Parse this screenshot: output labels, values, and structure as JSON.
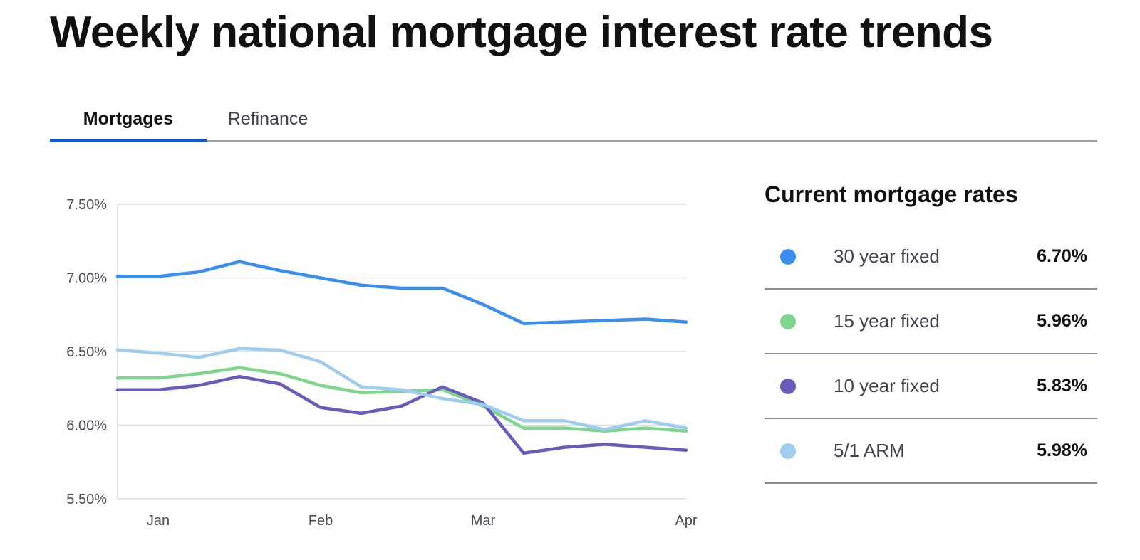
{
  "page": {
    "title": "Weekly national mortgage interest rate trends"
  },
  "tabs": [
    {
      "label": "Mortgages",
      "active": true
    },
    {
      "label": "Refinance",
      "active": false
    }
  ],
  "colors": {
    "accent": "#0a5bd8",
    "grid": "#dadce0",
    "axis_text": "#4a4d55"
  },
  "chart_data": {
    "type": "line",
    "title": "",
    "xlabel": "",
    "ylabel": "",
    "ylim": [
      5.5,
      7.5
    ],
    "y_ticks": [
      "7.50%",
      "7.00%",
      "6.50%",
      "6.00%",
      "5.50%"
    ],
    "y_tick_values": [
      7.5,
      7.0,
      6.5,
      6.0,
      5.5
    ],
    "x_tick_labels": [
      "Jan",
      "Feb",
      "Mar",
      "Apr"
    ],
    "x_tick_positions": [
      1,
      5,
      9,
      14
    ],
    "x": [
      0,
      1,
      2,
      3,
      4,
      5,
      6,
      7,
      8,
      9,
      10,
      11,
      12,
      13,
      14
    ],
    "grid": true,
    "series": [
      {
        "name": "30 year fixed",
        "color": "#3a8ef0",
        "values": [
          7.01,
          7.01,
          7.04,
          7.11,
          7.05,
          7.0,
          6.95,
          6.93,
          6.93,
          6.82,
          6.69,
          6.7,
          6.71,
          6.72,
          6.7
        ]
      },
      {
        "name": "15 year fixed",
        "color": "#7fd58d",
        "values": [
          6.32,
          6.32,
          6.35,
          6.39,
          6.35,
          6.27,
          6.22,
          6.23,
          6.24,
          6.13,
          5.98,
          5.98,
          5.96,
          5.98,
          5.96
        ]
      },
      {
        "name": "10 year fixed",
        "color": "#6b5bb8",
        "values": [
          6.24,
          6.24,
          6.27,
          6.33,
          6.28,
          6.12,
          6.08,
          6.13,
          6.26,
          6.15,
          5.81,
          5.85,
          5.87,
          5.85,
          5.83
        ]
      },
      {
        "name": "5/1 ARM",
        "color": "#9fcdf0",
        "values": [
          6.51,
          6.49,
          6.46,
          6.52,
          6.51,
          6.43,
          6.26,
          6.24,
          6.18,
          6.14,
          6.03,
          6.03,
          5.97,
          6.03,
          5.98
        ]
      }
    ]
  },
  "rates_panel": {
    "title": "Current mortgage rates",
    "rates": [
      {
        "label": "30 year fixed",
        "value": "6.70%",
        "color": "#3a8ef0"
      },
      {
        "label": "15 year fixed",
        "value": "5.96%",
        "color": "#7fd58d"
      },
      {
        "label": "10 year fixed",
        "value": "5.83%",
        "color": "#6b5bb8"
      },
      {
        "label": "5/1 ARM",
        "value": "5.98%",
        "color": "#9fcdf0"
      }
    ]
  }
}
